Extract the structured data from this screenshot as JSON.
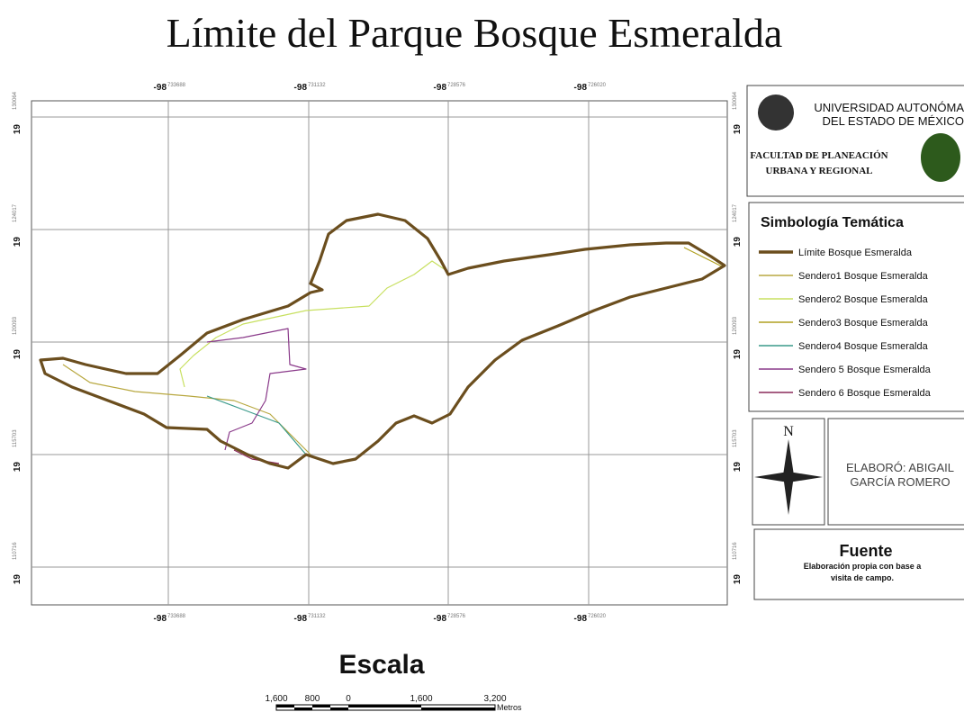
{
  "title": "Límite del Parque Bosque Esmeralda",
  "grid_labels": {
    "x": [
      {
        "deg": "-98",
        "min": "733688"
      },
      {
        "deg": "-98",
        "min": "731132"
      },
      {
        "deg": "-98",
        "min": "728576"
      },
      {
        "deg": "-98",
        "min": "726020"
      }
    ],
    "y": [
      {
        "deg": "19",
        "min": "130064"
      },
      {
        "deg": "19",
        "min": "124017"
      },
      {
        "deg": "19",
        "min": "120093"
      },
      {
        "deg": "19",
        "min": "115703"
      },
      {
        "deg": "19",
        "min": "110716"
      }
    ]
  },
  "institution": {
    "line1": "UNIVERSIDAD AUTONÓMA",
    "line2": "DEL ESTADO DE MÉXICO",
    "faculty1": "FACULTAD DE PLANEACIÓN",
    "faculty2": "URBANA Y REGIONAL"
  },
  "legend": {
    "title": "Simbología Temática",
    "items": [
      {
        "name": "Límite Bosque Esmeralda",
        "color": "#6b4e1e"
      },
      {
        "name": "Sendero1 Bosque Esmeralda",
        "color": "#b8a840"
      },
      {
        "name": "Sendero2 Bosque Esmeralda",
        "color": "#c8e060"
      },
      {
        "name": "Sendero3 Bosque Esmeralda",
        "color": "#b0a020"
      },
      {
        "name": "Sendero4 Bosque Esmeralda",
        "color": "#3a9a8a"
      },
      {
        "name": "Sendero 5 Bosque Esmeralda",
        "color": "#8a3a8a"
      },
      {
        "name": "Sendero 6 Bosque Esmeralda",
        "color": "#8a2a5a"
      }
    ]
  },
  "north": "N",
  "author": {
    "line1": "ELABORÓ: ABIGAIL",
    "line2": "GARCÍA ROMERO"
  },
  "source": {
    "title": "Fuente",
    "line1": "Elaboración propia con base a",
    "line2": "visita de campo."
  },
  "scale": {
    "title": "Escala",
    "labels": [
      "1,600",
      "800",
      "0",
      "1,600",
      "3,200"
    ],
    "unit": "Metros"
  }
}
